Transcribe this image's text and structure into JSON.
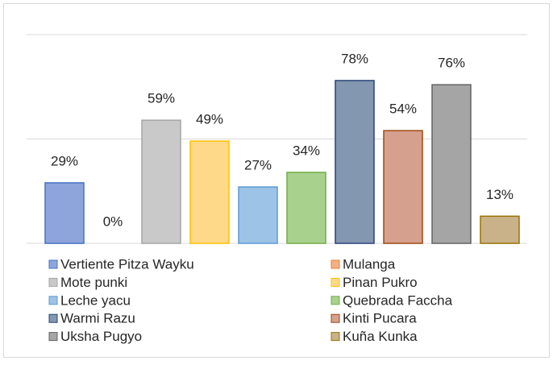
{
  "chart_data": {
    "type": "bar",
    "categories": [
      "Vertiente Pitza Wayku",
      "Mulanga",
      "Mote punki",
      "Pinan Pukro",
      "Leche yacu",
      "Quebrada Faccha",
      "Warmi Razu",
      "Kinti Pucara",
      "Uksha Pugyo",
      "Kuña Kunka"
    ],
    "values": [
      29,
      0,
      59,
      49,
      27,
      34,
      78,
      54,
      76,
      13
    ],
    "value_labels": [
      "29%",
      "0%",
      "59%",
      "49%",
      "27%",
      "34%",
      "78%",
      "54%",
      "76%",
      "13%"
    ],
    "colors": [
      "#8ea5dc",
      "#f4b183",
      "#c9c9c9",
      "#ffd98a",
      "#9dc3e6",
      "#a9d18e",
      "#8497b0",
      "#d6a08f",
      "#a5a5a5",
      "#c9b28a"
    ],
    "border_colors": [
      "#4472c4",
      "#ed7d31",
      "#a5a5a5",
      "#ffc000",
      "#5b9bd5",
      "#70ad47",
      "#264478",
      "#9e480e",
      "#636363",
      "#997300"
    ],
    "ylim": [
      0,
      100
    ],
    "yticks": [
      0,
      50,
      100
    ],
    "show_tick_labels": false,
    "grid": true
  }
}
